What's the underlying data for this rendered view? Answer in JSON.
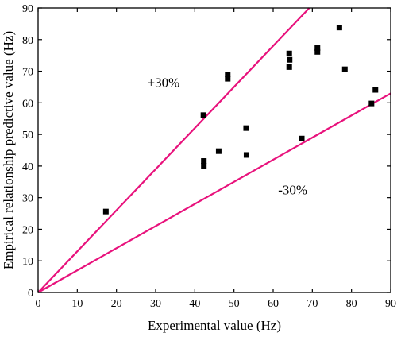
{
  "chart_data": {
    "type": "scatter",
    "title": "",
    "xlabel": "Experimental value (Hz)",
    "ylabel": "Empirical relationship predictive value (Hz)",
    "xlim": [
      0,
      90
    ],
    "ylim": [
      0,
      90
    ],
    "xticks": [
      0,
      10,
      20,
      30,
      40,
      50,
      60,
      70,
      80,
      90
    ],
    "yticks": [
      0,
      10,
      20,
      30,
      40,
      50,
      60,
      70,
      80,
      90
    ],
    "grid": false,
    "marker_color": "#000000",
    "line_color": "#e8127c",
    "points": [
      {
        "x": 17.3,
        "y": 25.6
      },
      {
        "x": 42.2,
        "y": 56.1
      },
      {
        "x": 42.3,
        "y": 41.6
      },
      {
        "x": 42.3,
        "y": 40.1
      },
      {
        "x": 46.1,
        "y": 44.7
      },
      {
        "x": 48.4,
        "y": 69.0
      },
      {
        "x": 48.4,
        "y": 67.6
      },
      {
        "x": 53.1,
        "y": 52.0
      },
      {
        "x": 53.2,
        "y": 43.5
      },
      {
        "x": 64.1,
        "y": 75.6
      },
      {
        "x": 64.2,
        "y": 73.6
      },
      {
        "x": 64.1,
        "y": 71.3
      },
      {
        "x": 67.3,
        "y": 48.7
      },
      {
        "x": 71.3,
        "y": 77.3
      },
      {
        "x": 71.3,
        "y": 76.1
      },
      {
        "x": 76.9,
        "y": 83.8
      },
      {
        "x": 78.3,
        "y": 70.6
      },
      {
        "x": 85.1,
        "y": 59.8
      },
      {
        "x": 86.1,
        "y": 64.1
      }
    ],
    "reference_lines": [
      {
        "label": "+30%",
        "slope": 1.3,
        "label_x": 32,
        "label_y": 65
      },
      {
        "label": "-30%",
        "slope": 0.7,
        "label_x": 65,
        "label_y": 31
      }
    ]
  }
}
